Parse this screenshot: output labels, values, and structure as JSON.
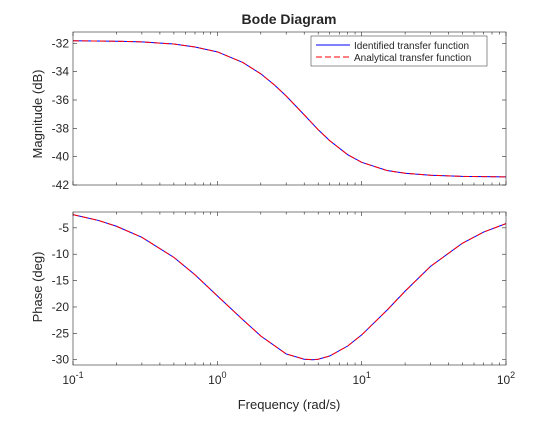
{
  "chart_data": [
    {
      "type": "line",
      "panel": "magnitude",
      "title": "Bode Diagram",
      "xlabel": "",
      "ylabel": "Magnitude (dB)",
      "xscale": "log",
      "xlim": [
        0.1,
        100
      ],
      "ylim": [
        -42,
        -31.2
      ],
      "yticks": [
        -42,
        -40,
        -38,
        -36,
        -34,
        -32
      ],
      "ytick_labels": [
        "-42",
        "-40",
        "-38",
        "-36",
        "-34",
        "-32"
      ],
      "grid": false,
      "legend": "top-right",
      "x": [
        0.1,
        0.2,
        0.3,
        0.5,
        0.7,
        1,
        1.5,
        2,
        2.5,
        3,
        4,
        5,
        6,
        8,
        10,
        15,
        20,
        30,
        50,
        100
      ],
      "series": [
        {
          "name": "Identified transfer function",
          "color": "#0000ff",
          "style": "solid",
          "values": [
            -31.82,
            -31.85,
            -31.9,
            -32.05,
            -32.26,
            -32.6,
            -33.35,
            -34.15,
            -34.96,
            -35.72,
            -37.05,
            -38.1,
            -38.87,
            -39.86,
            -40.4,
            -40.98,
            -41.17,
            -41.31,
            -41.39,
            -41.43
          ]
        },
        {
          "name": "Analytical transfer function",
          "color": "#ff0000",
          "style": "dashed",
          "values": [
            -31.82,
            -31.85,
            -31.9,
            -32.05,
            -32.26,
            -32.6,
            -33.35,
            -34.15,
            -34.96,
            -35.72,
            -37.05,
            -38.1,
            -38.87,
            -39.86,
            -40.4,
            -40.98,
            -41.17,
            -41.31,
            -41.39,
            -41.43
          ]
        }
      ]
    },
    {
      "type": "line",
      "panel": "phase",
      "xlabel": "Frequency (rad/s)",
      "ylabel": "Phase (deg)",
      "xscale": "log",
      "xlim": [
        0.1,
        100
      ],
      "xtick_labels": [
        {
          "base": "10",
          "exp": "-1"
        },
        {
          "base": "10",
          "exp": "0"
        },
        {
          "base": "10",
          "exp": "1"
        },
        {
          "base": "10",
          "exp": "2"
        }
      ],
      "ylim": [
        -31,
        -2
      ],
      "yticks": [
        -30,
        -25,
        -20,
        -15,
        -10,
        -5
      ],
      "ytick_labels": [
        "-30",
        "-25",
        "-20",
        "-15",
        "-10",
        "-5"
      ],
      "grid": false,
      "x": [
        0.1,
        0.15,
        0.2,
        0.3,
        0.5,
        0.7,
        1,
        1.5,
        2,
        3,
        4,
        4.6,
        5,
        6,
        8,
        10,
        15,
        20,
        30,
        50,
        70,
        100
      ],
      "series": [
        {
          "name": "Identified transfer function",
          "color": "#0000ff",
          "style": "solid",
          "values": [
            -2.5,
            -3.6,
            -4.7,
            -6.8,
            -10.6,
            -13.9,
            -17.9,
            -22.4,
            -25.5,
            -28.9,
            -29.9,
            -30.0,
            -29.9,
            -29.3,
            -27.4,
            -25.3,
            -20.6,
            -17.0,
            -12.3,
            -7.9,
            -5.8,
            -4.2
          ]
        },
        {
          "name": "Analytical transfer function",
          "color": "#ff0000",
          "style": "dashed",
          "values": [
            -2.5,
            -3.6,
            -4.7,
            -6.8,
            -10.6,
            -13.9,
            -17.9,
            -22.4,
            -25.5,
            -28.9,
            -29.9,
            -30.0,
            -29.9,
            -29.3,
            -27.4,
            -25.3,
            -20.6,
            -17.0,
            -12.3,
            -7.9,
            -5.8,
            -4.2
          ]
        }
      ]
    }
  ],
  "legend_entries": [
    "Identified transfer function",
    "Analytical transfer function"
  ]
}
